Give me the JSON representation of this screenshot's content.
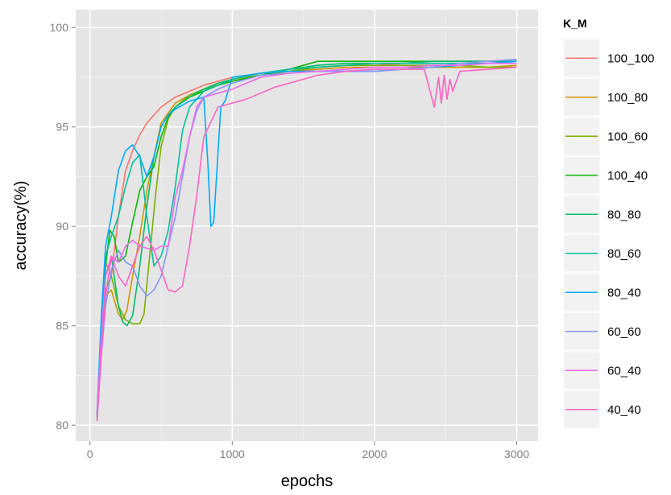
{
  "chart_data": {
    "type": "line",
    "xlabel": "epochs",
    "ylabel": "accuracy(%)",
    "xlim": [
      -100,
      3150
    ],
    "ylim": [
      79.2,
      100.9
    ],
    "x_ticks": [
      0,
      1000,
      2000,
      3000
    ],
    "y_ticks": [
      80,
      85,
      90,
      95,
      100
    ],
    "grid": true,
    "legend": {
      "title": "K_M",
      "placement": "right"
    },
    "series": [
      {
        "name": "100_100",
        "color": "#F8766D",
        "x": [
          50,
          80,
          110,
          150,
          200,
          250,
          300,
          350,
          400,
          450,
          500,
          600,
          700,
          800,
          900,
          1000,
          1200,
          1400,
          1600,
          1800,
          2000,
          2200,
          2400,
          2600,
          2800,
          3000
        ],
        "y": [
          80.5,
          85.2,
          88.2,
          87.5,
          90.5,
          92.8,
          93.8,
          94.6,
          95.2,
          95.6,
          96.0,
          96.5,
          96.8,
          97.1,
          97.3,
          97.5,
          97.7,
          97.8,
          98.0,
          98.1,
          98.1,
          98.2,
          98.3,
          98.3,
          98.3,
          98.4
        ]
      },
      {
        "name": "100_80",
        "color": "#CD9600",
        "x": [
          50,
          80,
          110,
          150,
          200,
          230,
          260,
          300,
          350,
          400,
          450,
          500,
          600,
          700,
          800,
          900,
          1000,
          1200,
          1400,
          1600,
          1800,
          2000,
          2200,
          2400,
          2600,
          2800,
          3000
        ],
        "y": [
          80.4,
          84.0,
          86.5,
          86.8,
          85.6,
          85.3,
          85.8,
          87.5,
          89.5,
          91.8,
          93.5,
          95.2,
          96.2,
          96.6,
          96.9,
          97.2,
          97.4,
          97.6,
          97.8,
          97.9,
          98.0,
          98.0,
          98.0,
          98.0,
          98.0,
          98.0,
          98.1
        ]
      },
      {
        "name": "100_60",
        "color": "#7CAE00",
        "x": [
          50,
          80,
          110,
          150,
          200,
          250,
          300,
          350,
          380,
          420,
          460,
          500,
          550,
          600,
          700,
          800,
          900,
          1000,
          1200,
          1400,
          1600,
          1800,
          2000,
          2200,
          2400,
          2600,
          2800,
          3000
        ],
        "y": [
          80.3,
          83.8,
          86.8,
          87.5,
          86.0,
          85.3,
          85.1,
          85.1,
          85.6,
          88.5,
          91.5,
          94.0,
          95.4,
          96.0,
          96.6,
          96.9,
          97.1,
          97.3,
          97.6,
          97.8,
          98.0,
          98.1,
          98.1,
          98.1,
          98.1,
          98.1,
          98.0,
          98.0
        ]
      },
      {
        "name": "100_40",
        "color": "#0CB702",
        "x": [
          50,
          80,
          110,
          140,
          170,
          200,
          250,
          300,
          350,
          400,
          450,
          500,
          550,
          600,
          700,
          800,
          900,
          1000,
          1200,
          1400,
          1600,
          1800,
          2000,
          2200,
          2400,
          2600,
          2800,
          3000
        ],
        "y": [
          80.4,
          84.5,
          88.0,
          89.8,
          89.5,
          88.2,
          88.5,
          90.2,
          91.8,
          92.5,
          93.0,
          94.5,
          95.5,
          96.0,
          96.5,
          96.8,
          97.1,
          97.3,
          97.6,
          97.9,
          98.3,
          98.3,
          98.3,
          98.3,
          98.3,
          98.3,
          98.3,
          98.3
        ]
      },
      {
        "name": "80_80",
        "color": "#00BE67",
        "x": [
          50,
          80,
          110,
          150,
          200,
          230,
          260,
          300,
          350,
          400,
          450,
          500,
          550,
          600,
          700,
          800,
          900,
          1000,
          1200,
          1400,
          1600,
          1800,
          2000,
          2200,
          2400,
          2600,
          2800,
          3000
        ],
        "y": [
          80.6,
          84.2,
          87.5,
          88.5,
          86.0,
          85.2,
          85.0,
          85.5,
          88.0,
          91.0,
          93.5,
          95.0,
          95.6,
          96.0,
          96.5,
          96.9,
          97.2,
          97.4,
          97.7,
          97.9,
          98.1,
          98.2,
          98.2,
          98.2,
          98.3,
          98.3,
          98.3,
          98.3
        ]
      },
      {
        "name": "80_60",
        "color": "#00C19A",
        "x": [
          50,
          80,
          110,
          150,
          200,
          250,
          300,
          350,
          400,
          450,
          500,
          550,
          600,
          650,
          700,
          800,
          900,
          1000,
          1200,
          1400,
          1600,
          1800,
          2000,
          2200,
          2400,
          2600,
          2800,
          3000
        ],
        "y": [
          80.5,
          85.0,
          88.5,
          89.5,
          90.5,
          92.0,
          93.2,
          93.6,
          90.5,
          88.0,
          88.5,
          89.8,
          92.0,
          94.8,
          96.0,
          96.8,
          97.1,
          97.4,
          97.7,
          97.9,
          98.0,
          98.1,
          98.2,
          98.2,
          98.2,
          98.2,
          98.2,
          98.2
        ]
      },
      {
        "name": "80_40",
        "color": "#00A9FF",
        "x": [
          50,
          80,
          110,
          150,
          200,
          250,
          300,
          350,
          400,
          450,
          500,
          550,
          600,
          650,
          700,
          750,
          800,
          830,
          850,
          870,
          890,
          920,
          950,
          1000,
          1200,
          1400,
          1600,
          1800,
          2000,
          2200,
          2400,
          2600,
          2800,
          3000
        ],
        "y": [
          80.6,
          85.5,
          89.0,
          90.5,
          92.8,
          93.8,
          94.1,
          93.5,
          92.5,
          93.5,
          95.0,
          95.6,
          95.9,
          96.1,
          96.3,
          96.4,
          96.5,
          93.0,
          90.0,
          90.2,
          92.5,
          96.0,
          96.3,
          97.5,
          97.7,
          97.8,
          97.8,
          97.8,
          97.8,
          97.9,
          98.0,
          98.1,
          98.2,
          98.3
        ]
      },
      {
        "name": "60_60",
        "color": "#8494FF",
        "x": [
          50,
          80,
          110,
          150,
          200,
          250,
          300,
          350,
          400,
          450,
          500,
          550,
          600,
          650,
          700,
          750,
          800,
          900,
          1000,
          1200,
          1400,
          1600,
          1800,
          2000,
          2200,
          2400,
          2600,
          2800,
          3000
        ],
        "y": [
          80.3,
          83.5,
          86.0,
          87.8,
          88.8,
          88.2,
          88.0,
          87.0,
          86.5,
          86.8,
          87.5,
          89.0,
          90.5,
          92.5,
          94.5,
          95.8,
          96.5,
          96.9,
          97.2,
          97.6,
          97.7,
          97.8,
          97.8,
          97.8,
          97.9,
          98.0,
          98.2,
          98.3,
          98.4
        ]
      },
      {
        "name": "60_40",
        "color": "#ED68ED",
        "x": [
          50,
          80,
          110,
          150,
          200,
          250,
          300,
          350,
          400,
          450,
          500,
          550,
          600,
          650,
          700,
          750,
          800,
          850,
          900,
          1000,
          1100,
          1200,
          1400,
          1600,
          1800,
          2000,
          2200,
          2400,
          2600,
          2800,
          3000
        ],
        "y": [
          80.5,
          84.5,
          87.5,
          88.5,
          88.2,
          89.0,
          89.3,
          89.0,
          88.9,
          88.8,
          89.0,
          89.0,
          91.5,
          92.8,
          94.5,
          96.0,
          96.5,
          96.6,
          96.7,
          96.9,
          97.2,
          97.5,
          97.7,
          97.8,
          97.9,
          98.0,
          98.0,
          98.1,
          98.1,
          98.2,
          98.2
        ]
      },
      {
        "name": "40_40",
        "color": "#FF61C3",
        "x": [
          50,
          80,
          110,
          150,
          200,
          250,
          300,
          350,
          400,
          450,
          500,
          550,
          600,
          650,
          700,
          750,
          800,
          900,
          1000,
          1100,
          1200,
          1300,
          1400,
          1600,
          1800,
          2000,
          2200,
          2350,
          2420,
          2450,
          2470,
          2490,
          2510,
          2530,
          2550,
          2600,
          2800,
          3000
        ],
        "y": [
          80.2,
          83.5,
          86.5,
          88.5,
          87.5,
          87.0,
          88.0,
          89.0,
          89.5,
          88.8,
          87.8,
          86.8,
          86.7,
          87.0,
          89.0,
          91.5,
          94.5,
          96.0,
          96.2,
          96.4,
          96.7,
          97.0,
          97.2,
          97.6,
          97.8,
          97.9,
          97.9,
          97.9,
          96.0,
          97.5,
          96.2,
          97.6,
          96.4,
          97.4,
          96.8,
          97.8,
          97.9,
          98.0
        ]
      }
    ]
  }
}
